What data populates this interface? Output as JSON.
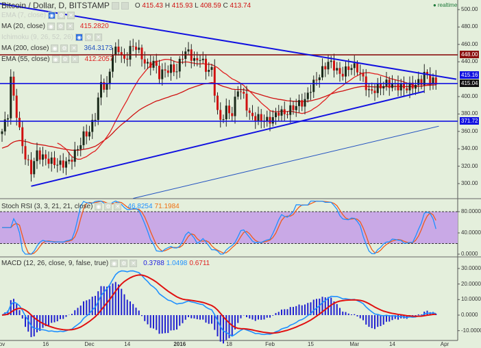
{
  "header": {
    "title": "Bitcoin / Dollar, D, BITSTAMP",
    "o_label": "O",
    "o": "415.43",
    "h_label": "H",
    "h": "415.93",
    "l_label": "L",
    "l": "408.59",
    "c_label": "C",
    "c": "413.74",
    "realtime": "realtime"
  },
  "indicators": [
    {
      "label": "EMA (7, close)",
      "value": "",
      "hidden": true
    },
    {
      "label": "MA (20, close)",
      "value": "415.2820",
      "color": "#e02020"
    },
    {
      "label": "Ichimoku (9, 26, 52, 26)",
      "value": "",
      "hidden": true
    },
    {
      "label": "MA (200, close)",
      "value": "364.3173",
      "color": "#2050c0"
    },
    {
      "label": "EMA (55, close)",
      "value": "412.2057",
      "color": "#e02020"
    }
  ],
  "stoch": {
    "label": "Stoch RSI (3, 3, 21, 21, close)",
    "k": "46.8254",
    "d": "71.1984"
  },
  "macd": {
    "label": "MACD (12, 26, close, 9, false, true)",
    "v1": "0.3788",
    "v2": "1.0498",
    "v3": "0.6711"
  },
  "price_labels": {
    "resistance": "448.00",
    "trend": "415.16",
    "last": "415.04",
    "support": "371.72"
  },
  "chart_data": {
    "type": "candlestick",
    "price_axis": {
      "min": 290,
      "max": 505,
      "ticks": [
        "500.00",
        "480.00",
        "460.00",
        "440.00",
        "400.00",
        "380.00",
        "360.00",
        "340.00",
        "320.00",
        "300.00"
      ]
    },
    "stoch_axis": {
      "ticks": [
        "80.0000",
        "40.0000",
        "0.0000"
      ],
      "bands": [
        20,
        80
      ]
    },
    "macd_axis": {
      "ticks": [
        "30.0000",
        "20.0000",
        "10.0000",
        "0.0000",
        "-10.0000"
      ]
    },
    "x_ticks": [
      {
        "label": "ov",
        "day": 0
      },
      {
        "label": "16",
        "day": 15
      },
      {
        "label": "Dec",
        "day": 30
      },
      {
        "label": "14",
        "day": 43
      },
      {
        "label": "2016",
        "day": 61
      },
      {
        "label": "18",
        "day": 78
      },
      {
        "label": "Feb",
        "day": 92
      },
      {
        "label": "15",
        "day": 106
      },
      {
        "label": "Mar",
        "day": 121
      },
      {
        "label": "14",
        "day": 134
      },
      {
        "label": "Apr",
        "day": 152
      }
    ],
    "close_path": [
      [
        0,
        360
      ],
      [
        2,
        380
      ],
      [
        3,
        420
      ],
      [
        4,
        400
      ],
      [
        6,
        360
      ],
      [
        8,
        330
      ],
      [
        10,
        315
      ],
      [
        12,
        335
      ],
      [
        14,
        330
      ],
      [
        17,
        325
      ],
      [
        20,
        322
      ],
      [
        23,
        325
      ],
      [
        26,
        340
      ],
      [
        28,
        355
      ],
      [
        30,
        360
      ],
      [
        32,
        378
      ],
      [
        34,
        415
      ],
      [
        36,
        410
      ],
      [
        38,
        450
      ],
      [
        40,
        455
      ],
      [
        42,
        440
      ],
      [
        44,
        455
      ],
      [
        46,
        458
      ],
      [
        48,
        445
      ],
      [
        50,
        435
      ],
      [
        52,
        440
      ],
      [
        54,
        425
      ],
      [
        56,
        430
      ],
      [
        58,
        432
      ],
      [
        60,
        430
      ],
      [
        62,
        448
      ],
      [
        64,
        452
      ],
      [
        66,
        440
      ],
      [
        68,
        445
      ],
      [
        70,
        432
      ],
      [
        72,
        430
      ],
      [
        74,
        382
      ],
      [
        75,
        372
      ],
      [
        77,
        385
      ],
      [
        79,
        380
      ],
      [
        81,
        410
      ],
      [
        83,
        400
      ],
      [
        85,
        378
      ],
      [
        88,
        375
      ],
      [
        91,
        372
      ],
      [
        93,
        375
      ],
      [
        95,
        383
      ],
      [
        97,
        380
      ],
      [
        99,
        385
      ],
      [
        101,
        390
      ],
      [
        104,
        395
      ],
      [
        106,
        410
      ],
      [
        108,
        420
      ],
      [
        110,
        430
      ],
      [
        112,
        440
      ],
      [
        114,
        435
      ],
      [
        116,
        425
      ],
      [
        118,
        430
      ],
      [
        120,
        435
      ],
      [
        122,
        432
      ],
      [
        124,
        420
      ],
      [
        126,
        405
      ],
      [
        128,
        408
      ],
      [
        130,
        412
      ],
      [
        132,
        415
      ],
      [
        134,
        414
      ],
      [
        136,
        412
      ],
      [
        138,
        410
      ],
      [
        140,
        411
      ],
      [
        142,
        414
      ],
      [
        144,
        418
      ],
      [
        145,
        426
      ],
      [
        147,
        420
      ],
      [
        149,
        415
      ]
    ],
    "ma200_path": [
      [
        45,
        283
      ],
      [
        150,
        366
      ]
    ],
    "hlines": [
      {
        "price": 448,
        "color": "#8b1010"
      },
      {
        "price": 415.04,
        "color": "#1010e0"
      },
      {
        "price": 371.72,
        "color": "#1010e0"
      }
    ],
    "trendlines": [
      {
        "from": [
          -1,
          507
        ],
        "to": [
          156,
          420
        ]
      },
      {
        "from": [
          10,
          297
        ],
        "to": [
          145,
          406
        ]
      }
    ]
  }
}
